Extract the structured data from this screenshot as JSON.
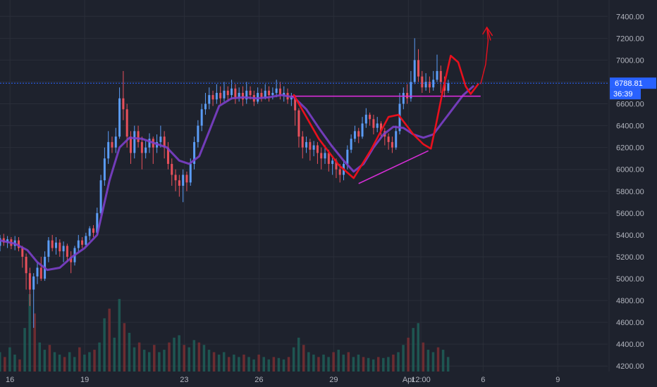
{
  "chart_data": {
    "type": "candlestick",
    "title": "",
    "xlabel": "",
    "ylabel": "",
    "ylim": [
      4150,
      7550
    ],
    "y_ticks": [
      "4200.00",
      "4400.00",
      "4600.00",
      "4800.00",
      "5000.00",
      "5200.00",
      "5400.00",
      "5600.00",
      "5800.00",
      "6000.00",
      "6200.00",
      "6400.00",
      "6600.00",
      "6800.00",
      "7000.00",
      "7200.00",
      "7400.00"
    ],
    "x_ticks": [
      "16",
      "19",
      "23",
      "26",
      "29",
      "Apr",
      "12:00",
      "6",
      "9"
    ],
    "x_tick_days": [
      16,
      19,
      23,
      26,
      29,
      32,
      32.5,
      35,
      38
    ],
    "xlim_days": [
      15.6,
      40.0
    ],
    "current_price": "6788.81",
    "countdown": "36:39",
    "grid": true,
    "legend": "none",
    "colors": {
      "background": "#1e222d",
      "grid": "#2a2e39",
      "up": "#26a69a",
      "down": "#ef5350",
      "wick_up": "#5b9cf6",
      "wick_down": "#e8505b",
      "ma": "#7b3fc9",
      "annotation_red": "#e8101d",
      "annotation_magenta": "#d62dd6",
      "price_line": "#2962ff"
    },
    "ma_line": {
      "name": "",
      "points": [
        [
          15.6,
          5350
        ],
        [
          16.2,
          5320
        ],
        [
          16.7,
          5260
        ],
        [
          17.1,
          5150
        ],
        [
          17.5,
          5080
        ],
        [
          18.0,
          5100
        ],
        [
          18.5,
          5200
        ],
        [
          19.0,
          5280
        ],
        [
          19.5,
          5400
        ],
        [
          20.0,
          5900
        ],
        [
          20.4,
          6200
        ],
        [
          20.8,
          6290
        ],
        [
          21.3,
          6280
        ],
        [
          21.8,
          6240
        ],
        [
          22.3,
          6200
        ],
        [
          22.8,
          6080
        ],
        [
          23.2,
          6050
        ],
        [
          23.6,
          6120
        ],
        [
          24.0,
          6350
        ],
        [
          24.4,
          6580
        ],
        [
          24.9,
          6650
        ],
        [
          25.4,
          6660
        ],
        [
          25.9,
          6650
        ],
        [
          26.4,
          6660
        ],
        [
          26.9,
          6680
        ],
        [
          27.4,
          6660
        ],
        [
          27.9,
          6550
        ],
        [
          28.4,
          6380
        ],
        [
          28.9,
          6220
        ],
        [
          29.4,
          6080
        ],
        [
          29.8,
          5980
        ],
        [
          30.2,
          6050
        ],
        [
          30.6,
          6200
        ],
        [
          31.0,
          6320
        ],
        [
          31.4,
          6390
        ],
        [
          31.8,
          6380
        ],
        [
          32.2,
          6320
        ],
        [
          32.6,
          6290
        ],
        [
          33.0,
          6320
        ],
        [
          33.4,
          6440
        ],
        [
          33.8,
          6560
        ],
        [
          34.2,
          6680
        ],
        [
          34.6,
          6760
        ]
      ]
    },
    "annotations": {
      "resistance_line": {
        "x": [
          27.3,
          34.9
        ],
        "y": [
          6670,
          6670
        ]
      },
      "support_line": {
        "x": [
          30.0,
          32.8
        ],
        "y": [
          5870,
          6170
        ]
      },
      "drawn_path": [
        [
          27.4,
          6680
        ],
        [
          28.4,
          6280
        ],
        [
          29.2,
          6040
        ],
        [
          29.8,
          5920
        ],
        [
          30.5,
          6180
        ],
        [
          31.2,
          6480
        ],
        [
          31.6,
          6500
        ],
        [
          32.2,
          6320
        ],
        [
          32.6,
          6230
        ],
        [
          32.9,
          6190
        ],
        [
          33.1,
          6400
        ],
        [
          33.4,
          6740
        ],
        [
          33.7,
          7040
        ],
        [
          34.0,
          6980
        ],
        [
          34.3,
          6760
        ],
        [
          34.5,
          6690
        ],
        [
          34.8,
          6780
        ]
      ],
      "up_arrow": [
        [
          34.9,
          6780
        ],
        [
          35.1,
          6960
        ],
        [
          35.2,
          7180
        ],
        [
          35.15,
          7300
        ],
        [
          35.3,
          7180
        ]
      ]
    },
    "candles": [
      [
        15.6,
        5300,
        5370,
        5250,
        5400
      ],
      [
        15.75,
        5370,
        5330,
        5300,
        5410
      ],
      [
        15.9,
        5330,
        5360,
        5280,
        5390
      ],
      [
        16.05,
        5360,
        5300,
        5270,
        5380
      ],
      [
        16.2,
        5300,
        5350,
        5260,
        5390
      ],
      [
        16.35,
        5350,
        5280,
        5250,
        5380
      ],
      [
        16.5,
        5280,
        5200,
        5100,
        5300
      ],
      [
        16.65,
        5200,
        5050,
        4900,
        5230
      ],
      [
        16.8,
        5050,
        4900,
        4750,
        5100
      ],
      [
        16.95,
        4900,
        5020,
        4550,
        5050
      ],
      [
        17.1,
        5020,
        5100,
        4950,
        5150
      ],
      [
        17.25,
        5100,
        5000,
        4980,
        5200
      ],
      [
        17.4,
        5000,
        5200,
        4980,
        5250
      ],
      [
        17.55,
        5200,
        5350,
        5150,
        5380
      ],
      [
        17.7,
        5350,
        5280,
        5250,
        5400
      ],
      [
        17.85,
        5280,
        5330,
        5220,
        5380
      ],
      [
        18.0,
        5330,
        5250,
        5200,
        5360
      ],
      [
        18.15,
        5250,
        5300,
        5150,
        5340
      ],
      [
        18.3,
        5300,
        5200,
        5150,
        5320
      ],
      [
        18.45,
        5200,
        5150,
        5050,
        5250
      ],
      [
        18.6,
        5150,
        5280,
        5120,
        5300
      ],
      [
        18.75,
        5280,
        5350,
        5250,
        5400
      ],
      [
        18.9,
        5350,
        5310,
        5280,
        5380
      ],
      [
        19.05,
        5310,
        5390,
        5290,
        5420
      ],
      [
        19.2,
        5390,
        5460,
        5350,
        5480
      ],
      [
        19.35,
        5460,
        5420,
        5380,
        5490
      ],
      [
        19.5,
        5420,
        5600,
        5400,
        5650
      ],
      [
        19.65,
        5600,
        5900,
        5580,
        5950
      ],
      [
        19.8,
        5900,
        6100,
        5850,
        6200
      ],
      [
        19.95,
        6100,
        6250,
        6050,
        6350
      ],
      [
        20.1,
        6250,
        6200,
        6150,
        6300
      ],
      [
        20.25,
        6200,
        6300,
        6150,
        6380
      ],
      [
        20.4,
        6300,
        6650,
        6280,
        6750
      ],
      [
        20.55,
        6650,
        6550,
        6450,
        6900
      ],
      [
        20.7,
        6550,
        6300,
        6200,
        6600
      ],
      [
        20.85,
        6300,
        6150,
        6050,
        6350
      ],
      [
        21.0,
        6150,
        6350,
        6100,
        6400
      ],
      [
        21.15,
        6350,
        6250,
        6200,
        6400
      ],
      [
        21.3,
        6250,
        6150,
        6000,
        6300
      ],
      [
        21.45,
        6150,
        6200,
        6100,
        6260
      ],
      [
        21.6,
        6200,
        6280,
        6150,
        6330
      ],
      [
        21.75,
        6280,
        6200,
        6050,
        6300
      ],
      [
        21.9,
        6200,
        6250,
        6150,
        6320
      ],
      [
        22.05,
        6250,
        6300,
        6200,
        6400
      ],
      [
        22.2,
        6300,
        6200,
        6100,
        6350
      ],
      [
        22.35,
        6200,
        6050,
        6000,
        6250
      ],
      [
        22.5,
        6050,
        5950,
        5850,
        6100
      ],
      [
        22.65,
        5950,
        5900,
        5800,
        6000
      ],
      [
        22.8,
        5900,
        5850,
        5750,
        5950
      ],
      [
        22.95,
        5850,
        5950,
        5700,
        6000
      ],
      [
        23.1,
        5950,
        5880,
        5800,
        5980
      ],
      [
        23.25,
        5880,
        6050,
        5850,
        6100
      ],
      [
        23.4,
        6050,
        6250,
        6000,
        6300
      ],
      [
        23.55,
        6250,
        6400,
        6200,
        6450
      ],
      [
        23.7,
        6400,
        6550,
        6350,
        6600
      ],
      [
        23.85,
        6550,
        6600,
        6500,
        6700
      ],
      [
        24.0,
        6600,
        6680,
        6550,
        6750
      ],
      [
        24.15,
        6680,
        6640,
        6580,
        6720
      ],
      [
        24.3,
        6640,
        6700,
        6600,
        6780
      ],
      [
        24.45,
        6700,
        6650,
        6600,
        6760
      ],
      [
        24.6,
        6650,
        6720,
        6620,
        6800
      ],
      [
        24.75,
        6720,
        6680,
        6620,
        6760
      ],
      [
        24.9,
        6680,
        6740,
        6640,
        6820
      ],
      [
        25.05,
        6740,
        6660,
        6600,
        6780
      ],
      [
        25.2,
        6660,
        6700,
        6620,
        6750
      ],
      [
        25.35,
        6700,
        6640,
        6580,
        6760
      ],
      [
        25.5,
        6640,
        6720,
        6600,
        6800
      ],
      [
        25.65,
        6720,
        6680,
        6640,
        6760
      ],
      [
        25.8,
        6680,
        6620,
        6580,
        6720
      ],
      [
        25.95,
        6620,
        6700,
        6600,
        6750
      ],
      [
        26.1,
        6700,
        6660,
        6620,
        6740
      ],
      [
        26.25,
        6660,
        6720,
        6640,
        6780
      ],
      [
        26.4,
        6720,
        6680,
        6620,
        6760
      ],
      [
        26.55,
        6680,
        6700,
        6640,
        6750
      ],
      [
        26.7,
        6700,
        6740,
        6660,
        6820
      ],
      [
        26.85,
        6740,
        6680,
        6640,
        6800
      ],
      [
        27.0,
        6680,
        6700,
        6620,
        6760
      ],
      [
        27.15,
        6700,
        6640,
        6600,
        6740
      ],
      [
        27.3,
        6640,
        6660,
        6580,
        6700
      ],
      [
        27.45,
        6660,
        6540,
        6400,
        6680
      ],
      [
        27.6,
        6540,
        6300,
        6200,
        6560
      ],
      [
        27.75,
        6300,
        6200,
        6100,
        6350
      ],
      [
        27.9,
        6200,
        6250,
        6150,
        6300
      ],
      [
        28.05,
        6250,
        6180,
        6080,
        6280
      ],
      [
        28.2,
        6180,
        6220,
        6120,
        6260
      ],
      [
        28.35,
        6220,
        6150,
        6050,
        6250
      ],
      [
        28.5,
        6150,
        6100,
        6000,
        6200
      ],
      [
        28.65,
        6100,
        6150,
        6050,
        6220
      ],
      [
        28.8,
        6150,
        6050,
        5980,
        6180
      ],
      [
        28.95,
        6050,
        6080,
        5950,
        6120
      ],
      [
        29.1,
        6080,
        6000,
        5920,
        6100
      ],
      [
        29.25,
        6000,
        5950,
        5880,
        6050
      ],
      [
        29.4,
        5950,
        6050,
        5900,
        6080
      ],
      [
        29.55,
        6050,
        6180,
        6000,
        6220
      ],
      [
        29.7,
        6180,
        6280,
        6150,
        6320
      ],
      [
        29.85,
        6280,
        6350,
        6250,
        6400
      ],
      [
        30.0,
        6350,
        6300,
        6240,
        6380
      ],
      [
        30.15,
        6300,
        6420,
        6280,
        6480
      ],
      [
        30.3,
        6420,
        6500,
        6380,
        6560
      ],
      [
        30.45,
        6500,
        6460,
        6400,
        6520
      ],
      [
        30.6,
        6460,
        6380,
        6320,
        6500
      ],
      [
        30.75,
        6380,
        6420,
        6340,
        6480
      ],
      [
        30.9,
        6420,
        6350,
        6280,
        6440
      ],
      [
        31.05,
        6350,
        6300,
        6220,
        6380
      ],
      [
        31.2,
        6300,
        6250,
        6180,
        6330
      ],
      [
        31.35,
        6250,
        6200,
        6150,
        6300
      ],
      [
        31.5,
        6200,
        6350,
        6180,
        6400
      ],
      [
        31.65,
        6350,
        6600,
        6320,
        6700
      ],
      [
        31.8,
        6600,
        6700,
        6550,
        6750
      ],
      [
        31.95,
        6700,
        6650,
        6600,
        6780
      ],
      [
        32.1,
        6650,
        6800,
        6620,
        6900
      ],
      [
        32.25,
        6800,
        7000,
        6780,
        7200
      ],
      [
        32.4,
        7000,
        6850,
        6800,
        7100
      ],
      [
        32.55,
        6850,
        6750,
        6700,
        6900
      ],
      [
        32.7,
        6750,
        6800,
        6720,
        6880
      ],
      [
        32.85,
        6800,
        6750,
        6700,
        6850
      ],
      [
        33.0,
        6750,
        6820,
        6720,
        6900
      ],
      [
        33.15,
        6820,
        6900,
        6800,
        7050
      ],
      [
        33.3,
        6900,
        6800,
        6700,
        6950
      ],
      [
        33.45,
        6800,
        6720,
        6660,
        6850
      ],
      [
        33.6,
        6720,
        6790,
        6700,
        6820
      ]
    ],
    "volume": [
      [
        15.6,
        40
      ],
      [
        15.8,
        30
      ],
      [
        16.0,
        50
      ],
      [
        16.2,
        35
      ],
      [
        16.4,
        25
      ],
      [
        16.6,
        90
      ],
      [
        16.8,
        160
      ],
      [
        17.0,
        120
      ],
      [
        17.2,
        60
      ],
      [
        17.4,
        45
      ],
      [
        17.6,
        55
      ],
      [
        17.8,
        40
      ],
      [
        18.0,
        35
      ],
      [
        18.2,
        30
      ],
      [
        18.4,
        40
      ],
      [
        18.6,
        30
      ],
      [
        18.8,
        50
      ],
      [
        19.0,
        35
      ],
      [
        19.2,
        40
      ],
      [
        19.4,
        45
      ],
      [
        19.6,
        60
      ],
      [
        19.8,
        110
      ],
      [
        20.0,
        130
      ],
      [
        20.2,
        70
      ],
      [
        20.4,
        150
      ],
      [
        20.6,
        100
      ],
      [
        20.8,
        80
      ],
      [
        21.0,
        50
      ],
      [
        21.2,
        60
      ],
      [
        21.4,
        45
      ],
      [
        21.6,
        40
      ],
      [
        21.8,
        55
      ],
      [
        22.0,
        40
      ],
      [
        22.2,
        45
      ],
      [
        22.4,
        60
      ],
      [
        22.6,
        70
      ],
      [
        22.8,
        75
      ],
      [
        23.0,
        55
      ],
      [
        23.2,
        50
      ],
      [
        23.4,
        65
      ],
      [
        23.6,
        60
      ],
      [
        23.8,
        55
      ],
      [
        24.0,
        45
      ],
      [
        24.2,
        40
      ],
      [
        24.4,
        35
      ],
      [
        24.6,
        40
      ],
      [
        24.8,
        30
      ],
      [
        25.0,
        35
      ],
      [
        25.2,
        30
      ],
      [
        25.4,
        35
      ],
      [
        25.6,
        30
      ],
      [
        25.8,
        25
      ],
      [
        26.0,
        35
      ],
      [
        26.2,
        30
      ],
      [
        26.4,
        25
      ],
      [
        26.6,
        30
      ],
      [
        26.8,
        28
      ],
      [
        27.0,
        25
      ],
      [
        27.2,
        30
      ],
      [
        27.4,
        50
      ],
      [
        27.6,
        70
      ],
      [
        27.8,
        55
      ],
      [
        28.0,
        40
      ],
      [
        28.2,
        35
      ],
      [
        28.4,
        30
      ],
      [
        28.6,
        35
      ],
      [
        28.8,
        30
      ],
      [
        29.0,
        40
      ],
      [
        29.2,
        45
      ],
      [
        29.4,
        35
      ],
      [
        29.6,
        40
      ],
      [
        29.8,
        30
      ],
      [
        30.0,
        35
      ],
      [
        30.2,
        30
      ],
      [
        30.4,
        28
      ],
      [
        30.6,
        25
      ],
      [
        30.8,
        30
      ],
      [
        31.0,
        28
      ],
      [
        31.2,
        30
      ],
      [
        31.4,
        35
      ],
      [
        31.6,
        40
      ],
      [
        31.8,
        55
      ],
      [
        32.0,
        70
      ],
      [
        32.2,
        90
      ],
      [
        32.4,
        100
      ],
      [
        32.6,
        60
      ],
      [
        32.8,
        45
      ],
      [
        33.0,
        40
      ],
      [
        33.2,
        50
      ],
      [
        33.4,
        45
      ],
      [
        33.6,
        30
      ]
    ],
    "volume_max": 160
  }
}
